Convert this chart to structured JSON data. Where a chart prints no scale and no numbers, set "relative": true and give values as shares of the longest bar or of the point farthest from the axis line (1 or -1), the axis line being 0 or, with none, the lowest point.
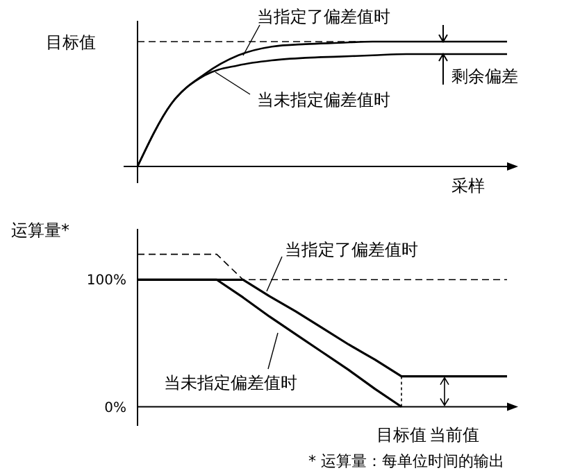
{
  "chart_data": [
    {
      "type": "line",
      "relative": true,
      "xlabel": "采样",
      "categories": [
        null,
        null,
        null,
        null,
        null,
        null,
        null,
        null,
        null,
        null,
        null,
        null
      ],
      "series": [
        {
          "name": "当指定了偏差值时",
          "color": "#000000",
          "values": [
            0,
            0.5,
            0.74,
            0.89,
            0.96,
            0.98,
            0.99,
            1,
            1,
            1,
            1,
            1
          ]
        },
        {
          "name": "当未指定偏差值时",
          "color": "#000000",
          "values": [
            0,
            0.5,
            0.73,
            0.81,
            0.85,
            0.87,
            0.88,
            0.89,
            0.9,
            0.9,
            0.9,
            0.9
          ]
        }
      ],
      "ref_lines": [
        {
          "axis": "y",
          "value": 1,
          "label": "目标值",
          "line_style": "dashed"
        }
      ],
      "annotations": [
        "剩余偏差"
      ]
    },
    {
      "type": "line",
      "ylabel": "运算量*",
      "categories": [
        null,
        null,
        null,
        null,
        null,
        null,
        null,
        null,
        null,
        null,
        "目标值",
        null,
        "当前值",
        null,
        null
      ],
      "ylim": [
        -15,
        140
      ],
      "yticks": [
        {
          "value": 0,
          "label": "0%"
        },
        {
          "value": 100,
          "label": "100%"
        }
      ],
      "series": [
        {
          "name": "当指定了偏差值时",
          "color": "#000000",
          "values": [
            100,
            100,
            100,
            100,
            100,
            87,
            75,
            62,
            49,
            37,
            24,
            24,
            24,
            24,
            24
          ]
        },
        {
          "name": "当未指定偏差值时",
          "color": "#000000",
          "values": [
            100,
            100,
            100,
            100,
            86,
            71,
            57,
            43,
            29,
            14,
            0,
            null,
            null,
            null,
            null
          ]
        },
        {
          "color": "#000000",
          "line_style": "dashed",
          "values": [
            120,
            120,
            120,
            120,
            100,
            null,
            null,
            null,
            null,
            null,
            null,
            null,
            null,
            null,
            null
          ]
        }
      ],
      "ref_lines": [
        {
          "axis": "y",
          "value": 100,
          "line_style": "dashed"
        }
      ],
      "annotations": [
        "* 运算量：每单位时间的输出"
      ]
    }
  ]
}
